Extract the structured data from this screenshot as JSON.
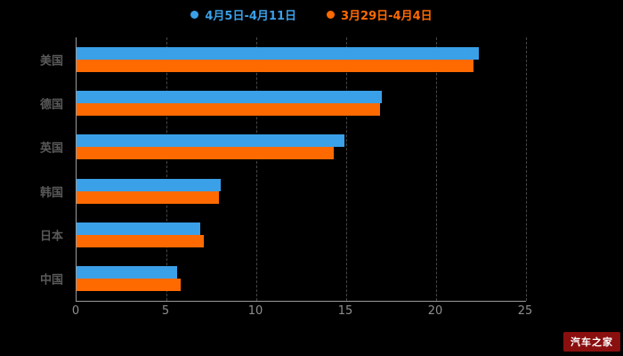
{
  "legend": {
    "items": [
      {
        "label": "4月5日-4月11日"
      },
      {
        "label": "3月29日-4月4日"
      }
    ]
  },
  "watermark": {
    "text": "汽车之家",
    "bg": "#8a0f0f",
    "fg": "#ffffff"
  },
  "chart_data": {
    "type": "bar",
    "orientation": "horizontal",
    "title": "",
    "xlabel": "",
    "ylabel": "",
    "categories": [
      "美国",
      "德国",
      "英国",
      "韩国",
      "日本",
      "中国"
    ],
    "series": [
      {
        "name": "4月5日-4月11日",
        "color": "#3aa0e8",
        "values": [
          22.4,
          17.0,
          14.9,
          8.0,
          6.9,
          5.6
        ]
      },
      {
        "name": "3月29日-4月4日",
        "color": "#ff6a00",
        "values": [
          22.1,
          16.9,
          14.3,
          7.9,
          7.1,
          5.8
        ]
      }
    ],
    "xlim": [
      0,
      25
    ],
    "xticks": [
      0,
      5,
      10,
      15,
      20,
      25
    ],
    "grid": "dashed-vertical",
    "legend_position": "top",
    "background": "#000000"
  }
}
